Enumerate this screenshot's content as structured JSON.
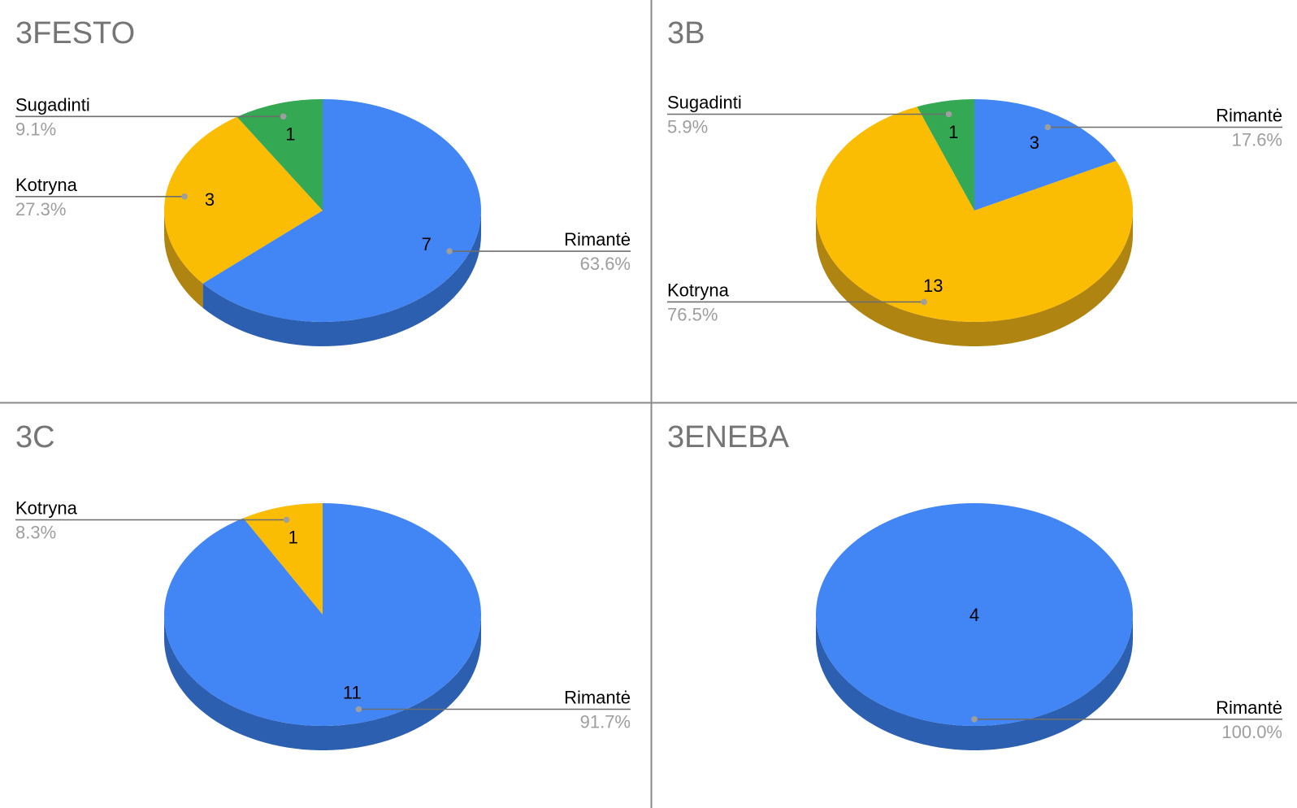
{
  "colors": {
    "Rimantė": "#4285f4",
    "Kotryna": "#fbbc04",
    "Sugadinti": "#34a853"
  },
  "chart_data": [
    {
      "type": "pie",
      "title": "3FESTO",
      "slices": [
        {
          "name": "Rimantė",
          "value": 7,
          "percent": "63.6%"
        },
        {
          "name": "Kotryna",
          "value": 3,
          "percent": "27.3%"
        },
        {
          "name": "Sugadinti",
          "value": 1,
          "percent": "9.1%"
        }
      ]
    },
    {
      "type": "pie",
      "title": "3B",
      "slices": [
        {
          "name": "Rimantė",
          "value": 3,
          "percent": "17.6%"
        },
        {
          "name": "Kotryna",
          "value": 13,
          "percent": "76.5%"
        },
        {
          "name": "Sugadinti",
          "value": 1,
          "percent": "5.9%"
        }
      ]
    },
    {
      "type": "pie",
      "title": "3C",
      "slices": [
        {
          "name": "Rimantė",
          "value": 11,
          "percent": "91.7%"
        },
        {
          "name": "Kotryna",
          "value": 1,
          "percent": "8.3%"
        }
      ]
    },
    {
      "type": "pie",
      "title": "3ENEBA",
      "slices": [
        {
          "name": "Rimantė",
          "value": 4,
          "percent": "100.0%"
        }
      ]
    }
  ]
}
